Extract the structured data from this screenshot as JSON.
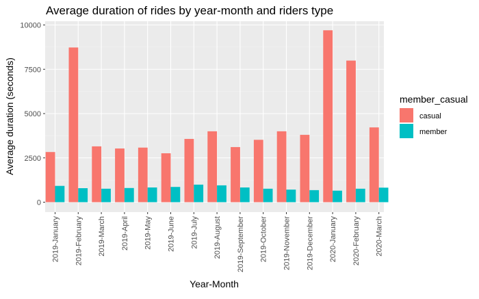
{
  "chart_data": {
    "type": "bar",
    "title": "Average duration of rides by year-month and riders type",
    "xlabel": "Year-Month",
    "ylabel": "Average duration (seconds)",
    "ylim": [
      0,
      10000
    ],
    "yticks": [
      "0",
      "2500",
      "5000",
      "7500",
      "10000"
    ],
    "categories": [
      "2019-January",
      "2019-February",
      "2019-March",
      "2019-April",
      "2019-May",
      "2019-June",
      "2019-July",
      "2019-August",
      "2019-September",
      "2019-October",
      "2019-November",
      "2019-December",
      "2020-January",
      "2020-February",
      "2020-March"
    ],
    "series": [
      {
        "name": "casual",
        "color": "#F8766D",
        "values": [
          2830,
          8730,
          3150,
          3030,
          3080,
          2760,
          3570,
          4000,
          3110,
          3520,
          4000,
          3800,
          9700,
          7990,
          4220
        ]
      },
      {
        "name": "member",
        "color": "#00BFC4",
        "values": [
          920,
          790,
          760,
          800,
          830,
          860,
          990,
          950,
          830,
          760,
          710,
          680,
          650,
          760,
          820
        ]
      }
    ],
    "grid": true,
    "legend": {
      "title": "member_casual",
      "position": "right"
    }
  }
}
